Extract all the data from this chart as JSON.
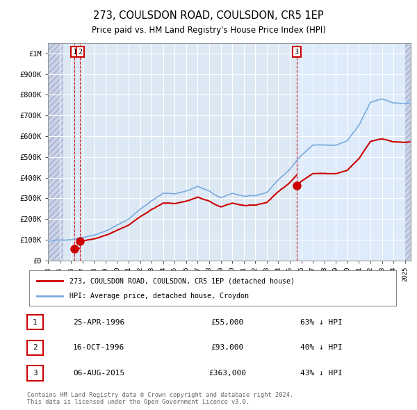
{
  "title": "273, COULSDON ROAD, COULSDON, CR5 1EP",
  "subtitle": "Price paid vs. HM Land Registry's House Price Index (HPI)",
  "ylim": [
    0,
    1050000
  ],
  "yticks": [
    0,
    100000,
    200000,
    300000,
    400000,
    500000,
    600000,
    700000,
    800000,
    900000,
    1000000
  ],
  "ytick_labels": [
    "£0",
    "£100K",
    "£200K",
    "£300K",
    "£400K",
    "£500K",
    "£600K",
    "£700K",
    "£800K",
    "£900K",
    "£1M"
  ],
  "xlim_start": 1994.0,
  "xlim_end": 2025.5,
  "hpi_color": "#7aaadd",
  "price_color": "#cc0000",
  "hatch_end_year": 1995.3,
  "transactions": [
    {
      "year": 1996.32,
      "price": 55000,
      "label": "1"
    },
    {
      "year": 1996.79,
      "price": 93000,
      "label": "2"
    },
    {
      "year": 2015.59,
      "price": 363000,
      "label": "3"
    }
  ],
  "table_rows": [
    {
      "num": "1",
      "date": "25-APR-1996",
      "price": "£55,000",
      "hpi": "63% ↓ HPI"
    },
    {
      "num": "2",
      "date": "16-OCT-1996",
      "price": "£93,000",
      "hpi": "40% ↓ HPI"
    },
    {
      "num": "3",
      "date": "06-AUG-2015",
      "price": "£363,000",
      "hpi": "43% ↓ HPI"
    }
  ],
  "legend_line1": "273, COULSDON ROAD, COULSDON, CR5 1EP (detached house)",
  "legend_line2": "HPI: Average price, detached house, Croydon",
  "copyright": "Contains HM Land Registry data © Crown copyright and database right 2024.\nThis data is licensed under the Open Government Licence v3.0.",
  "background_color": "#ffffff",
  "plot_bg_color": "#dde8f5",
  "hatch_bg_color": "#c8d4e8",
  "hpi_base_points": {
    "1994": 92000,
    "1995": 97000,
    "1996": 102000,
    "1997": 115000,
    "1998": 128000,
    "1999": 148000,
    "2000": 175000,
    "2001": 205000,
    "2002": 253000,
    "2003": 295000,
    "2004": 330000,
    "2005": 328000,
    "2006": 342000,
    "2007": 365000,
    "2008": 340000,
    "2009": 305000,
    "2010": 328000,
    "2011": 315000,
    "2012": 312000,
    "2013": 328000,
    "2014": 390000,
    "2015": 440000,
    "2016": 510000,
    "2017": 560000,
    "2018": 560000,
    "2019": 558000,
    "2020": 578000,
    "2021": 650000,
    "2022": 760000,
    "2023": 780000,
    "2024": 760000,
    "2025": 755000
  }
}
